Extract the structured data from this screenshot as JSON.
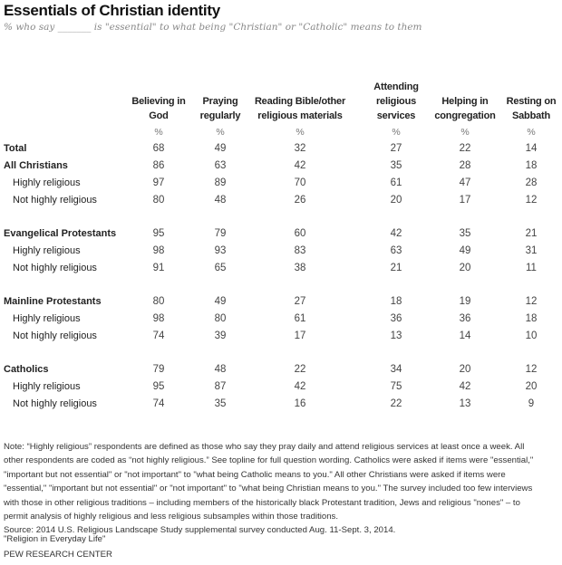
{
  "title": "Essentials of Christian identity",
  "subtitle": "% who say _______ is \"essential\" to what being \"Christian\" or \"Catholic\" means to them",
  "columns": [
    [
      "Believing in",
      "God"
    ],
    [
      "Praying",
      "regularly"
    ],
    [
      "Reading Bible/other",
      "religious materials"
    ],
    [
      "Attending",
      "religious",
      "services"
    ],
    [
      "Helping in",
      "congregation"
    ],
    [
      "Resting on",
      "Sabbath"
    ]
  ],
  "unit": "%",
  "rows": [
    {
      "label": "Total",
      "type": "bold",
      "values": [
        "68",
        "49",
        "32",
        "27",
        "22",
        "14"
      ]
    },
    {
      "label": "All Christians",
      "type": "bold",
      "values": [
        "86",
        "63",
        "42",
        "35",
        "28",
        "18"
      ]
    },
    {
      "label": "Highly religious",
      "type": "sub",
      "values": [
        "97",
        "89",
        "70",
        "61",
        "47",
        "28"
      ]
    },
    {
      "label": "Not highly religious",
      "type": "sub",
      "values": [
        "80",
        "48",
        "26",
        "20",
        "17",
        "12"
      ]
    },
    {
      "label": "Evangelical Protestants",
      "type": "bold",
      "values": [
        "95",
        "79",
        "60",
        "42",
        "35",
        "21"
      ]
    },
    {
      "label": "Highly religious",
      "type": "sub",
      "values": [
        "98",
        "93",
        "83",
        "63",
        "49",
        "31"
      ]
    },
    {
      "label": "Not highly religious",
      "type": "sub",
      "values": [
        "91",
        "65",
        "38",
        "21",
        "20",
        "11"
      ]
    },
    {
      "label": "Mainline Protestants",
      "type": "bold",
      "values": [
        "80",
        "49",
        "27",
        "18",
        "19",
        "12"
      ]
    },
    {
      "label": "Highly religious",
      "type": "sub",
      "values": [
        "98",
        "80",
        "61",
        "36",
        "36",
        "18"
      ]
    },
    {
      "label": "Not highly religious",
      "type": "sub",
      "values": [
        "74",
        "39",
        "17",
        "13",
        "14",
        "10"
      ]
    },
    {
      "label": "Catholics",
      "type": "bold",
      "values": [
        "79",
        "48",
        "22",
        "34",
        "20",
        "12"
      ]
    },
    {
      "label": "Highly religious",
      "type": "sub",
      "values": [
        "95",
        "87",
        "42",
        "75",
        "42",
        "20"
      ]
    },
    {
      "label": "Not highly religious",
      "type": "sub",
      "values": [
        "74",
        "35",
        "16",
        "22",
        "13",
        "9"
      ]
    }
  ],
  "note_lines": [
    "Note: “Highly religious” respondents are defined as those who say they pray daily and attend religious services at least once a week. All",
    "other respondents are coded as “not highly religious.” See topline for full question wording. Catholics were asked if items were \"essential,\"",
    "\"important but not essential\" or \"not important\" to \"what being Catholic means to you.\" All other Christians were asked if items were",
    "\"essential,\" \"important but not essential\" or \"not important\" to \"what being Christian means to you.\" The survey included too few interviews",
    "with those in other religious traditions – including members of the historically black Protestant tradition, Jews and religious \"nones\" – to",
    "permit analysis of highly religious and less religious subsamples within those traditions.",
    "Source: 2014 U.S. Religious Landscape Study supplemental survey conducted Aug. 11-Sept. 3, 2014."
  ],
  "report": "\"Religion in Everyday Life\"",
  "org": "PEW RESEARCH CENTER"
}
